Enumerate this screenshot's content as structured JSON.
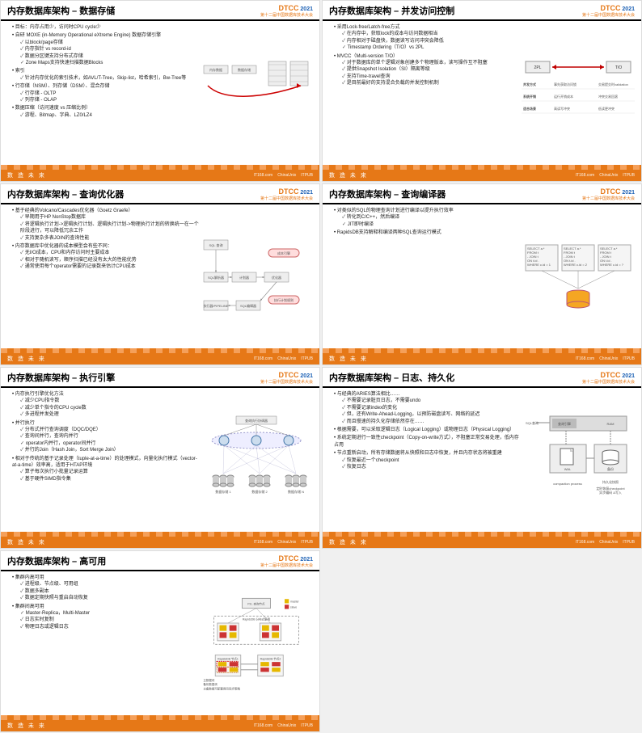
{
  "conference": {
    "name": "DTCC",
    "year": "2021",
    "subtitle": "第十二届中国数据库技术大会"
  },
  "footer": {
    "motto": "数 造 未 来",
    "sponsors": [
      "IT168.com",
      "ChinaUnix",
      "ITPUB"
    ]
  },
  "slides": [
    {
      "title": "内存数据库架构 – 数据存储",
      "bullets": [
        {
          "t": "目标：内存占用少，访问时CPU cycle少"
        },
        {
          "t": "自研 MOXE (in-Memory Operational eXtreme Engine) 数据存储引擎",
          "sub": [
            "以block/page存储",
            "内存指针 vs record-id",
            "数据分区键支持分布式存储",
            "Zone Maps支持快速扫描数据Blocks"
          ]
        },
        {
          "t": "索引",
          "sub": [
            "针对内存优化的索引技术，如AVL/T-Tree，Skip-list，哈希索引，Bw-Tree等"
          ]
        },
        {
          "t": "行存储（NSM）、列存储（DSM）、混合存储",
          "sub": [
            "行存储 - OLTP",
            "列存储 - OLAP"
          ]
        },
        {
          "t": "数据压缩（访问速度 vs 压缩比例）",
          "sub": [
            "游程、Bitmap、字典、LZ0/LZ4"
          ]
        }
      ],
      "diagram": "storage"
    },
    {
      "title": "内存数据库架构 – 并发访问控制",
      "bullets": [
        {
          "t": "采用Lock-free/Latch-free方式",
          "sub": [
            "在内存中，获取lock的成本与访问数据相当",
            "内存相对于磁盘快，数据读写访问冲突会降低",
            "Timestamp Ordering（T/O）vs 2PL"
          ]
        },
        {
          "t": "MVCC（Multi-version T/O）",
          "sub": [
            "对于数据库的单个逻辑对象创建多个物理版本，读写操作互不阻塞",
            "提供Snapshot Isolation（SI）隔离等级",
            "支持Time-travel查询",
            "是目前最好的支持混合负载的并发控制机制"
          ]
        }
      ],
      "diagram": "concurrency"
    },
    {
      "title": "内存数据库架构 – 查询优化器",
      "bullets": [
        {
          "t": "基于经典的Volcano/Cascades优化器（Goetz Graefe）",
          "sub": [
            "早期用于HP NonStop数据库",
            "将逻辑执行计划->逻辑执行计划、逻辑执行计划->物理执行计划的转换统一在一个阶段进行，可以降低冗余工作",
            "支持复杂多表JOIN的查询性能"
          ]
        },
        {
          "t": "内存数据库中优化器的成本模型会有些不同：",
          "sub": [
            "无I/O成本，CPU和内存访问时主要成本",
            "相对于随机读写，顺序扫描已经没有太大的性能优势",
            "通常使用每个operator需要的记录数来估计CPU成本"
          ]
        }
      ],
      "diagram": "optimizer"
    },
    {
      "title": "内存数据库架构 – 查询编译器",
      "bullets": [
        {
          "t": "对类似的SQL的物理查询计划进行编译以提升执行效率",
          "sub": [
            "转化到C/C++，然后编译",
            "JIT即时编译"
          ]
        },
        {
          "t": "RapidsDB支持解释和编译两种SQL查询运行模式"
        }
      ],
      "diagram": "compiler"
    },
    {
      "title": "内存数据库架构 – 执行引擎",
      "bullets": [
        {
          "t": "内存执行引擎优化方法",
          "sub": [
            "减少CPU指令数",
            "减少单个指令的CPU cycle数",
            "多进程并发处理"
          ]
        },
        {
          "t": "并行执行",
          "sub": [
            "分布式并行查询调度（DQC/DQE）",
            "查询间并行，查询内并行",
            "operator内并行，operator间并行",
            "并行的Join（Hash Join，Sort Merge Join）"
          ]
        },
        {
          "t": "相对于传统的基于记录处理（tuple-at-a-time）的处理模式，向量化执行模式（vector-at-a-time）效率高，适用于HTAP环境",
          "sub": [
            "算子每次执行小批量记录运算",
            "基于硬件SIMD指令集"
          ]
        }
      ],
      "diagram": "execution"
    },
    {
      "title": "内存数据库架构 – 日志、持久化",
      "bullets": [
        {
          "t": "与经典的ARIES算法相比……",
          "sub": [
            "不需要记录脏页日志，不需要undo",
            "不需要记录index的变化",
            "但，还有Write-Ahead-Logging，以预防磁盘读写、网络的延迟",
            "而且慢速的持久化存储依然存在……"
          ]
        },
        {
          "t": "根据需要，可以采取逻辑日志（Logical Logging）或物理日志（Physical Logging）"
        },
        {
          "t": "系统定期进行一致性checkpoint（Copy-on-write方式），不阻塞正常交易处理，低内存占用"
        },
        {
          "t": "节点重新启动，所有存储数据将从快照和日志中恢复，并且内存状态将被重建",
          "sub": [
            "恢复最近一个checkpoint",
            "恢复日志"
          ]
        }
      ],
      "diagram": "logging"
    },
    {
      "title": "内存数据库架构 – 高可用",
      "bullets": [
        {
          "t": "集群内高可用",
          "sub": [
            "进程级、节点级、可用组",
            "数据多副本",
            "数据定期快照与重启自动恢复"
          ]
        },
        {
          "t": "集群间高可用",
          "sub": [
            "Master-Replica，Multi-Master",
            "日志实时复制",
            "物理日志或逻辑日志"
          ]
        }
      ],
      "diagram": "ha"
    }
  ],
  "diagrams": {
    "storage": {
      "boxes": [
        "内存数据",
        "数据存储"
      ],
      "color_line": "#c00000"
    },
    "concurrency": {
      "left": "2PL",
      "right": "T/O",
      "arrow_color": "#c00000",
      "rows": [
        [
          "并发方式",
          "事先获取访问锁",
          "交易提交时validation"
        ],
        [
          "系统开销",
          "运行开销成本",
          "冲突交易回滚"
        ],
        [
          "适合场景",
          "高读写冲突",
          "低读更冲突"
        ]
      ]
    },
    "optimizer": {
      "nodes": [
        "SQL 查询",
        "SQL解析器",
        "计划器",
        "优化器",
        "SQL编辑器",
        "执行器/PIPELINE"
      ],
      "extra": [
        "成本引擎",
        "执行计划规则"
      ]
    },
    "compiler": {
      "queries": [
        "SELECT a.*\nFROM t\n- JOIN t\nON t.id .\nWHERE c.id = 1",
        "SELECT a.*\nFROM t\n- JOIN t\nON t.id .\nWHERE c.id = 2",
        "SELECT a.*\nFROM t\n- JOIN t\nON t.id .\nWHERE c.id = ?"
      ],
      "db_color": "#f5a623"
    },
    "execution": {
      "root": "查询执行协调器",
      "workers": [
        "数据存储 1",
        "数据存储 2",
        "数据存储 N"
      ]
    },
    "logging": {
      "left": "SQL查询",
      "engine": "查询引擎",
      "ram": "RAM",
      "wal": "WAL",
      "backup": "备份",
      "compaction": "compaction process",
      "snapshot_note": "持久化快照",
      "checkpoint_note": "定时恢复checkpoint\n异步编码 &写入"
    },
    "ha": {
      "top": "P.E. 查询节点",
      "legend": [
        "master",
        "slave"
      ],
      "cluster": "RapidsDB 分布式集群",
      "nodes": [
        "RapidsDB 节点1",
        "RapidsDB 节点2"
      ],
      "note": [
        "主数据块",
        "备份数据块",
        "主备数据可配置用同同步策略"
      ]
    }
  }
}
